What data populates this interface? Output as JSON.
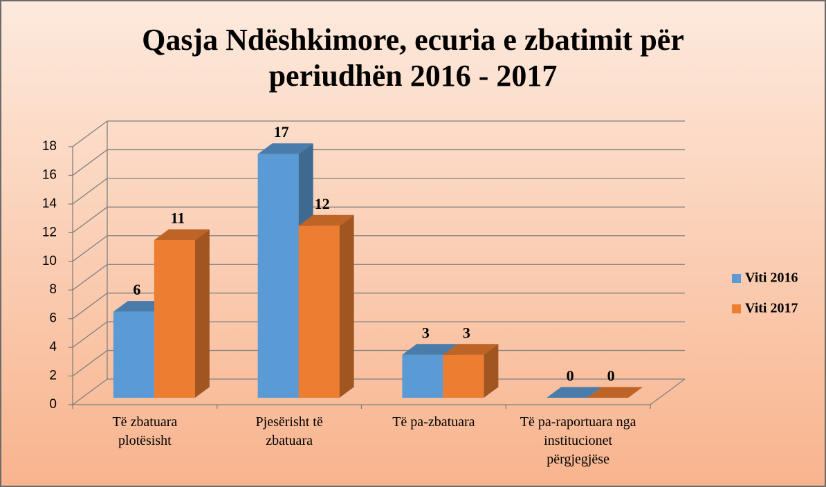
{
  "chart_data": {
    "type": "bar3d",
    "title": [
      "Qasja Ndëshkimore, ecuria e zbatimit për",
      "periudhën  2016 - 2017"
    ],
    "categories": [
      "Të zbatuara plotësisht",
      "Pjesërisht të zbatuara",
      "Të pa-zbatuara",
      "Të pa-raportuara nga institucionet përgjegjëse"
    ],
    "series": [
      {
        "name": "Viti 2016",
        "color": "#5b9bd5",
        "values": [
          6,
          17,
          3,
          0
        ]
      },
      {
        "name": "Viti 2017",
        "color": "#ed7d31",
        "values": [
          11,
          12,
          3,
          0
        ]
      }
    ],
    "ylim": [
      0,
      18
    ],
    "yticks": [
      0,
      2,
      4,
      6,
      8,
      10,
      12,
      14,
      16,
      18
    ],
    "grid": true,
    "legend": "right"
  }
}
